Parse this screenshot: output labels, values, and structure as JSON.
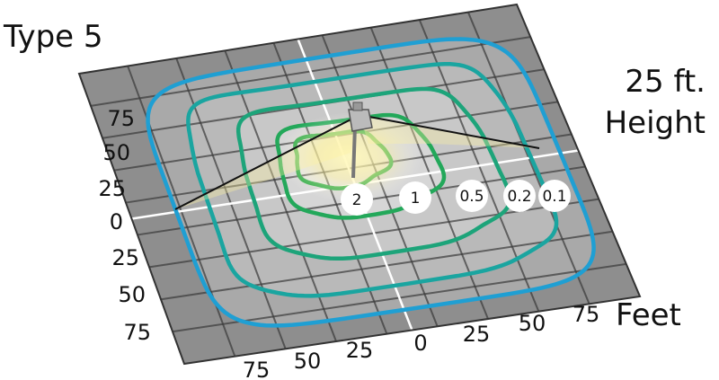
{
  "title": "Type 5",
  "mounting_height": {
    "line1": "25 ft.",
    "line2": "Height"
  },
  "axis_unit": "Feet",
  "left_ticks": [
    "75",
    "50",
    "25",
    "0",
    "25",
    "50",
    "75"
  ],
  "bottom_ticks": [
    "75",
    "50",
    "25",
    "0",
    "25",
    "50",
    "75"
  ],
  "contour_labels": [
    "2",
    "1",
    "0.5",
    "0.2",
    "0.1"
  ]
}
